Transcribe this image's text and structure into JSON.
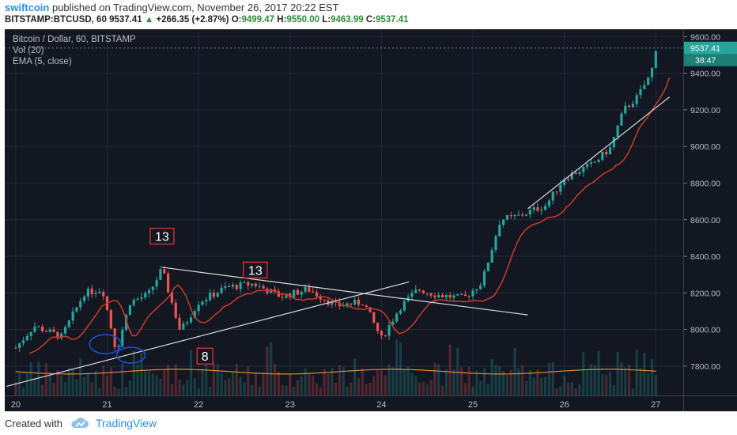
{
  "header": {
    "author": "swiftcoin",
    "published": "published on TradingView.com, November 26, 2017 20:22 EST",
    "symbol": "BITSTAMP:BTCUSD, 60",
    "last": "9537.41",
    "change": "+266.35 (+2.87%)",
    "o_label": "O:",
    "o": "9499.47",
    "h_label": "H:",
    "h": "9550.00",
    "l_label": "L:",
    "l": "9463.99",
    "c_label": "C:",
    "c": "9537.41",
    "up_icon": "triangle-up-icon"
  },
  "legend": {
    "title": "Bitcoin / Dollar, 60, BITSTAMP",
    "vol": "Vol (20)",
    "ema": "EMA (5, close)"
  },
  "footer": {
    "created": "Created with",
    "brand": "TradingView",
    "logo_icon": "tradingview-cloud-icon"
  },
  "annotations": {
    "label_13a": "13",
    "label_13b": "13",
    "label_8": "8",
    "price_tag": "9537.41",
    "countdown": "38:47"
  },
  "colors": {
    "background": "#131722",
    "up": "#26a69a",
    "down": "#ef5350",
    "ema": "#c0392b",
    "vol_ma": "#e08a2a",
    "trendline": "#d9d9d9",
    "ellipse": "#1e4fd6",
    "price_tag": "#26a69a"
  },
  "chart_data": {
    "type": "candlestick",
    "title": "Bitcoin / Dollar, 60, BITSTAMP",
    "x_ticks": [
      "20",
      "21",
      "22",
      "23",
      "24",
      "25",
      "26",
      "27"
    ],
    "y_ticks": [
      "7800.00",
      "8000.00",
      "8200.00",
      "8400.00",
      "8600.00",
      "8800.00",
      "9000.00",
      "9200.00",
      "9400.00",
      "9600.00"
    ],
    "ylim": [
      7640,
      9640
    ],
    "xlim": [
      19.88,
      27.3
    ],
    "grid": true,
    "last_close": 9537.41,
    "ohlc_points": [
      {
        "t": 20.0,
        "c": 7900
      },
      {
        "t": 20.2,
        "c": 8020
      },
      {
        "t": 20.5,
        "c": 7960
      },
      {
        "t": 20.75,
        "c": 8200
      },
      {
        "t": 20.95,
        "c": 8220
      },
      {
        "t": 21.1,
        "c": 7880
      },
      {
        "t": 21.25,
        "c": 8150
      },
      {
        "t": 21.45,
        "c": 8190
      },
      {
        "t": 21.6,
        "c": 8330
      },
      {
        "t": 21.8,
        "c": 7990
      },
      {
        "t": 22.0,
        "c": 8150
      },
      {
        "t": 22.3,
        "c": 8230
      },
      {
        "t": 22.6,
        "c": 8250
      },
      {
        "t": 22.9,
        "c": 8180
      },
      {
        "t": 23.2,
        "c": 8220
      },
      {
        "t": 23.5,
        "c": 8130
      },
      {
        "t": 23.8,
        "c": 8150
      },
      {
        "t": 24.0,
        "c": 7950
      },
      {
        "t": 24.2,
        "c": 8120
      },
      {
        "t": 24.4,
        "c": 8220
      },
      {
        "t": 24.6,
        "c": 8190
      },
      {
        "t": 24.9,
        "c": 8170
      },
      {
        "t": 25.1,
        "c": 8260
      },
      {
        "t": 25.3,
        "c": 8600
      },
      {
        "t": 25.5,
        "c": 8620
      },
      {
        "t": 25.8,
        "c": 8680
      },
      {
        "t": 26.0,
        "c": 8830
      },
      {
        "t": 26.3,
        "c": 8900
      },
      {
        "t": 26.5,
        "c": 8990
      },
      {
        "t": 26.65,
        "c": 9200
      },
      {
        "t": 26.8,
        "c": 9270
      },
      {
        "t": 26.95,
        "c": 9400
      },
      {
        "t": 27.0,
        "c": 9537
      }
    ],
    "trendlines": [
      {
        "name": "support",
        "x1": 19.9,
        "y1": 7690,
        "x2": 24.3,
        "y2": 8260
      },
      {
        "name": "resistance",
        "x1": 21.6,
        "y1": 8340,
        "x2": 25.6,
        "y2": 8080
      },
      {
        "name": "channel",
        "x1": 25.6,
        "y1": 8660,
        "x2": 27.15,
        "y2": 9270
      }
    ],
    "volume_ma_level": 7770,
    "text_marks": [
      {
        "text": "13",
        "t": 21.6,
        "p": 8510
      },
      {
        "text": "13",
        "t": 22.62,
        "p": 8325
      },
      {
        "text": "8",
        "t": 22.07,
        "p": 7855
      }
    ]
  }
}
